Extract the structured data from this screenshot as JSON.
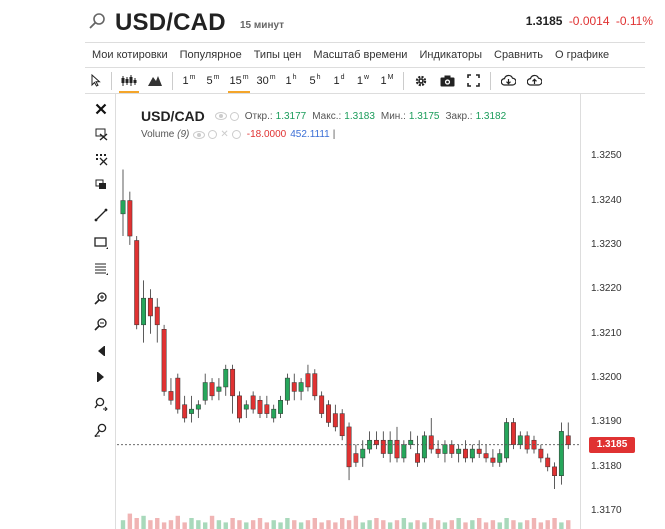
{
  "header": {
    "symbol": "USD/CAD",
    "timeframe": "15 минут",
    "price": "1.3185",
    "change": "-0.0014",
    "change_pct": "-0.11%"
  },
  "menu": [
    "Мои котировки",
    "Популярное",
    "Типы цен",
    "Масштаб времени",
    "Индикаторы",
    "Сравнить",
    "О графике"
  ],
  "toolbar": {
    "intervals": [
      {
        "n": "1",
        "u": "m"
      },
      {
        "n": "5",
        "u": "m"
      },
      {
        "n": "15",
        "u": "m"
      },
      {
        "n": "30",
        "u": "m"
      },
      {
        "n": "1",
        "u": "h"
      },
      {
        "n": "5",
        "u": "h"
      },
      {
        "n": "1",
        "u": "d"
      },
      {
        "n": "1",
        "u": "w"
      },
      {
        "n": "1",
        "u": "M"
      }
    ],
    "active_interval": "15m"
  },
  "legend": {
    "name": "USD/CAD",
    "open_label": "Откр.:",
    "open": "1.3177",
    "high_label": "Макс.:",
    "high": "1.3183",
    "low_label": "Мин.:",
    "low": "1.3175",
    "close_label": "Закр.:",
    "close": "1.3182",
    "volume_label": "Volume",
    "volume_param": "(9)",
    "volume_val": "-18.0000",
    "volume_ma": "452.1111",
    "volume_sep": "|"
  },
  "yaxis": {
    "ticks": [
      "1.3250",
      "1.3240",
      "1.3230",
      "1.3220",
      "1.3210",
      "1.3200",
      "1.3190",
      "1.3180",
      "1.3170"
    ],
    "current": "1.3185"
  },
  "colors": {
    "up": "#26a65b",
    "down": "#e03232",
    "active": "#f4a52a"
  },
  "chart_data": {
    "type": "candlestick",
    "ylim": [
      1.3166,
      1.3264
    ],
    "candles": [
      [
        1.3237,
        1.3247,
        1.3232,
        1.324
      ],
      [
        1.324,
        1.3242,
        1.323,
        1.3232
      ],
      [
        1.3231,
        1.3232,
        1.3211,
        1.3212
      ],
      [
        1.3212,
        1.3222,
        1.3208,
        1.3218
      ],
      [
        1.3218,
        1.322,
        1.321,
        1.3214
      ],
      [
        1.3216,
        1.3218,
        1.3208,
        1.3212
      ],
      [
        1.3211,
        1.3212,
        1.3196,
        1.3197
      ],
      [
        1.3197,
        1.32,
        1.3194,
        1.3195
      ],
      [
        1.32,
        1.3201,
        1.3192,
        1.3193
      ],
      [
        1.3194,
        1.3196,
        1.319,
        1.3191
      ],
      [
        1.3192,
        1.3196,
        1.319,
        1.3193
      ],
      [
        1.3193,
        1.3195,
        1.3191,
        1.3194
      ],
      [
        1.3195,
        1.3201,
        1.3194,
        1.3199
      ],
      [
        1.3199,
        1.32,
        1.3195,
        1.3196
      ],
      [
        1.3197,
        1.32,
        1.3195,
        1.3198
      ],
      [
        1.3198,
        1.3203,
        1.3196,
        1.3202
      ],
      [
        1.3202,
        1.3203,
        1.3192,
        1.3196
      ],
      [
        1.3196,
        1.3197,
        1.319,
        1.3191
      ],
      [
        1.3193,
        1.3195,
        1.3191,
        1.3194
      ],
      [
        1.3196,
        1.3197,
        1.3192,
        1.3193
      ],
      [
        1.3195,
        1.3196,
        1.3191,
        1.3192
      ],
      [
        1.3194,
        1.3196,
        1.3191,
        1.3192
      ],
      [
        1.3191,
        1.3194,
        1.319,
        1.3193
      ],
      [
        1.3192,
        1.3196,
        1.3191,
        1.3195
      ],
      [
        1.3195,
        1.3201,
        1.3194,
        1.32
      ],
      [
        1.3199,
        1.3201,
        1.3195,
        1.3197
      ],
      [
        1.3197,
        1.32,
        1.3195,
        1.3199
      ],
      [
        1.3201,
        1.3203,
        1.3197,
        1.3198
      ],
      [
        1.3201,
        1.3202,
        1.3195,
        1.3196
      ],
      [
        1.3196,
        1.3197,
        1.3191,
        1.3192
      ],
      [
        1.3194,
        1.3195,
        1.3189,
        1.319
      ],
      [
        1.3192,
        1.3194,
        1.3188,
        1.3189
      ],
      [
        1.3192,
        1.3193,
        1.3186,
        1.3187
      ],
      [
        1.3189,
        1.319,
        1.3177,
        1.318
      ],
      [
        1.3183,
        1.3185,
        1.318,
        1.3181
      ],
      [
        1.3182,
        1.3186,
        1.318,
        1.3184
      ],
      [
        1.3184,
        1.3188,
        1.3183,
        1.3186
      ],
      [
        1.3186,
        1.3188,
        1.3184,
        1.3185
      ],
      [
        1.3186,
        1.3188,
        1.3182,
        1.3183
      ],
      [
        1.3183,
        1.3188,
        1.3181,
        1.3186
      ],
      [
        1.3186,
        1.3189,
        1.3181,
        1.3182
      ],
      [
        1.3182,
        1.3186,
        1.3181,
        1.3185
      ],
      [
        1.3185,
        1.3188,
        1.3184,
        1.3186
      ],
      [
        1.3183,
        1.3187,
        1.318,
        1.3181
      ],
      [
        1.3182,
        1.3188,
        1.3181,
        1.3187
      ],
      [
        1.3187,
        1.3191,
        1.3183,
        1.3184
      ],
      [
        1.3184,
        1.3186,
        1.3182,
        1.3183
      ],
      [
        1.3183,
        1.3186,
        1.3181,
        1.3185
      ],
      [
        1.3185,
        1.3186,
        1.3182,
        1.3183
      ],
      [
        1.3183,
        1.3185,
        1.3181,
        1.3184
      ],
      [
        1.3184,
        1.3186,
        1.3181,
        1.3182
      ],
      [
        1.3182,
        1.3185,
        1.3181,
        1.3184
      ],
      [
        1.3184,
        1.3186,
        1.3182,
        1.3183
      ],
      [
        1.3183,
        1.3185,
        1.3181,
        1.3182
      ],
      [
        1.3182,
        1.3184,
        1.318,
        1.3181
      ],
      [
        1.3181,
        1.3184,
        1.318,
        1.3183
      ],
      [
        1.3182,
        1.3191,
        1.3181,
        1.319
      ],
      [
        1.319,
        1.3191,
        1.3184,
        1.3185
      ],
      [
        1.3185,
        1.3188,
        1.3184,
        1.3187
      ],
      [
        1.3187,
        1.3188,
        1.3183,
        1.3184
      ],
      [
        1.3186,
        1.3187,
        1.3183,
        1.3184
      ],
      [
        1.3184,
        1.3185,
        1.3181,
        1.3182
      ],
      [
        1.3182,
        1.3183,
        1.3179,
        1.318
      ],
      [
        1.318,
        1.3181,
        1.3175,
        1.3178
      ],
      [
        1.3178,
        1.319,
        1.3176,
        1.3188
      ],
      [
        1.3187,
        1.319,
        1.3184,
        1.3185
      ]
    ],
    "volume_bars": [
      4,
      7,
      5,
      6,
      4,
      5,
      3,
      4,
      6,
      3,
      5,
      4,
      3,
      6,
      4,
      3,
      5,
      4,
      3,
      4,
      5,
      3,
      4,
      3,
      5,
      4,
      3,
      4,
      5,
      3,
      4,
      3,
      5,
      4,
      6,
      3,
      4,
      5,
      4,
      3,
      4,
      5,
      3,
      4,
      3,
      5,
      4,
      3,
      4,
      5,
      3,
      4,
      5,
      3,
      4,
      3,
      5,
      4,
      3,
      4,
      5,
      3,
      4,
      5,
      3,
      4
    ]
  }
}
